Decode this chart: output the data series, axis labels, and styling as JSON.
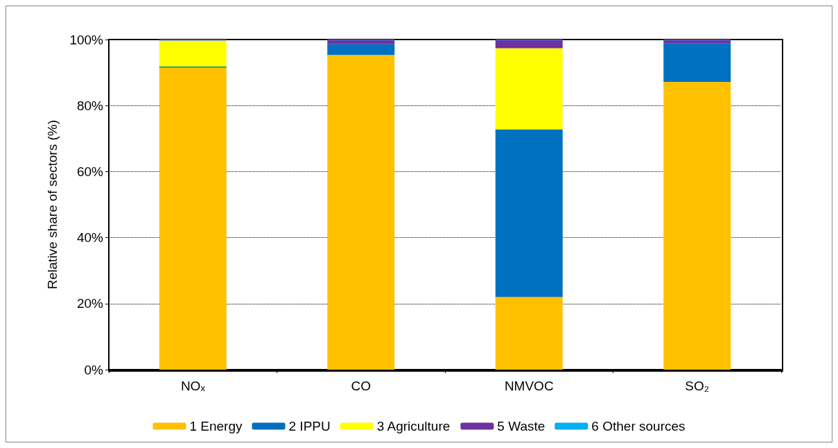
{
  "chart_data": {
    "type": "bar",
    "stacked": true,
    "ylabel": "Relative share of sectors (%)",
    "categories": [
      "NOₓ",
      "CO",
      "NMVOC",
      "SO₂"
    ],
    "series": [
      {
        "name": "1 Energy",
        "color": "#ffc000",
        "values": [
          91.5,
          95.3,
          22.0,
          87.2
        ]
      },
      {
        "name": "2 IPPU",
        "color": "#0070c0",
        "values": [
          0.3,
          3.3,
          50.8,
          11.7
        ]
      },
      {
        "name": "3 Agriculture",
        "color": "#ffff00",
        "values": [
          7.9,
          0,
          24.6,
          0
        ]
      },
      {
        "name": "5 Waste",
        "color": "#7030a0",
        "values": [
          0.1,
          1.2,
          2.4,
          0.9
        ]
      },
      {
        "name": "6 Other sources",
        "color": "#00b0f0",
        "values": [
          0.2,
          0.2,
          0.2,
          0.2
        ]
      }
    ],
    "ylim": [
      0,
      100
    ],
    "yticks": [
      {
        "value": 0,
        "label": "0%"
      },
      {
        "value": 20,
        "label": "20%"
      },
      {
        "value": 40,
        "label": "40%"
      },
      {
        "value": 60,
        "label": "60%"
      },
      {
        "value": 80,
        "label": "80%"
      },
      {
        "value": 100,
        "label": "100%"
      }
    ],
    "grid": "y",
    "legend": "bottom"
  }
}
